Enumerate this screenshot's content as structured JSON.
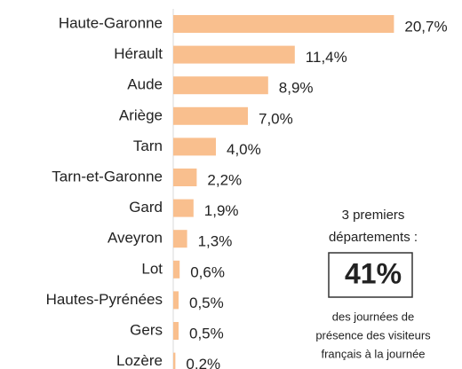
{
  "chart_data": {
    "type": "barh",
    "categories": [
      "Haute-Garonne",
      "Hérault",
      "Aude",
      "Ariège",
      "Tarn",
      "Tarn-et-Garonne",
      "Gard",
      "Aveyron",
      "Lot",
      "Hautes-Pyrénées",
      "Gers",
      "Lozère"
    ],
    "values": [
      20.7,
      11.4,
      8.9,
      7.0,
      4.0,
      2.2,
      1.9,
      1.3,
      0.6,
      0.5,
      0.5,
      0.2
    ],
    "value_labels": [
      "20,7%",
      "11,4%",
      "8,9%",
      "7,0%",
      "4,0%",
      "2,2%",
      "1,9%",
      "1,3%",
      "0,6%",
      "0,5%",
      "0,5%",
      "0,2%"
    ],
    "color": "#f9bf8e",
    "xlim": [
      0,
      22
    ],
    "annotation": {
      "heading": [
        "3 premiers",
        "départements :"
      ],
      "highlight": "41%",
      "caption": [
        "des journées de",
        "présence des visiteurs",
        "français à la journée"
      ],
      "color": "#f08a2c"
    }
  }
}
